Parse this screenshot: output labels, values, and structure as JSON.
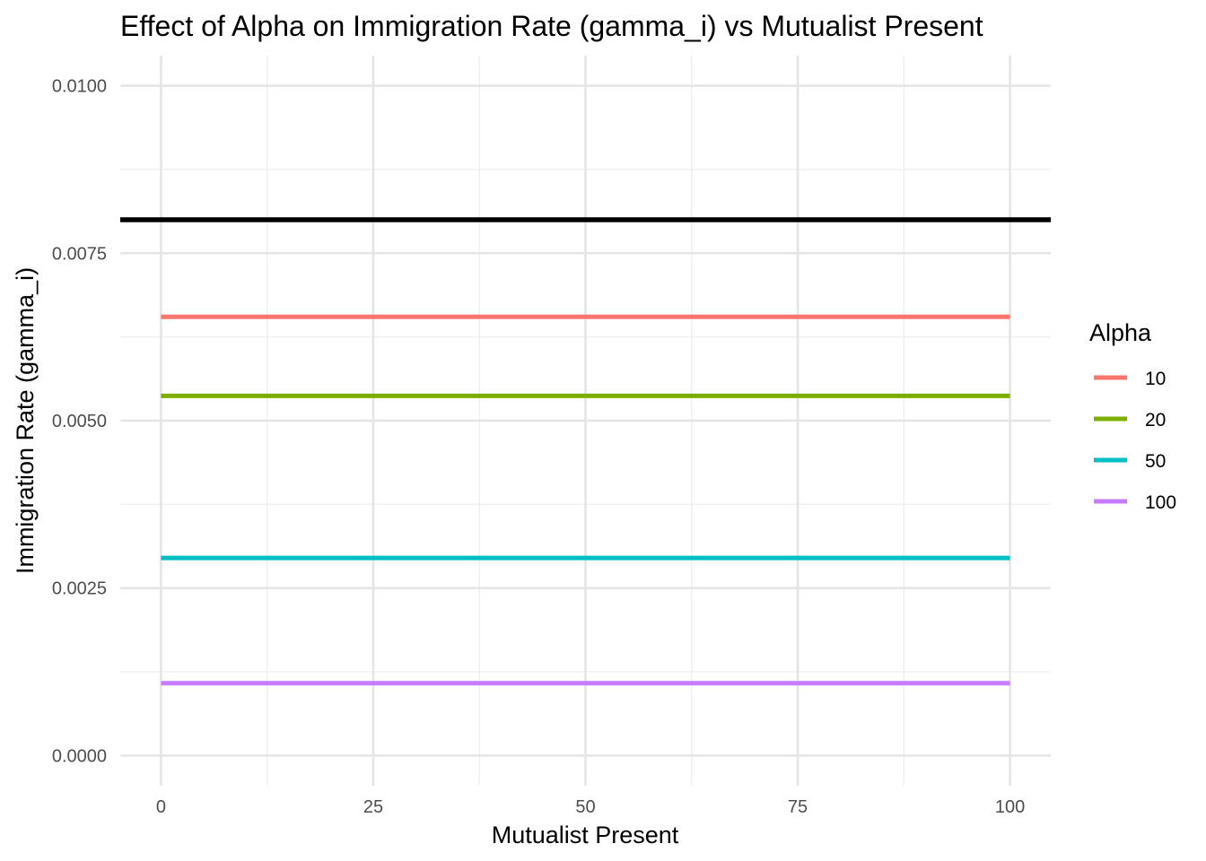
{
  "chart_data": {
    "type": "line",
    "title": "Effect of Alpha on Immigration Rate (gamma_i) vs Mutualist Present",
    "xlabel": "Mutualist Present",
    "ylabel": "Immigration Rate (gamma_i)",
    "xlim": [
      -4.8,
      104.8
    ],
    "ylim": [
      -0.00045,
      0.01045
    ],
    "x_ticks": [
      0,
      25,
      50,
      75,
      100
    ],
    "x_tick_labels": [
      "0",
      "25",
      "50",
      "75",
      "100"
    ],
    "y_ticks": [
      0,
      0.0025,
      0.005,
      0.0075,
      0.01
    ],
    "y_tick_labels": [
      "0.0000",
      "0.0025",
      "0.0050",
      "0.0075",
      "0.0100"
    ],
    "grid": true,
    "legend": {
      "title": "Alpha",
      "position": "right"
    },
    "series": [
      {
        "name": "10",
        "color": "#F8766D",
        "x": [
          0,
          100
        ],
        "y": [
          0.00655,
          0.00655
        ]
      },
      {
        "name": "20",
        "color": "#7CAE00",
        "x": [
          0,
          100
        ],
        "y": [
          0.00537,
          0.00537
        ]
      },
      {
        "name": "50",
        "color": "#00BFC4",
        "x": [
          0,
          100
        ],
        "y": [
          0.00295,
          0.00295
        ]
      },
      {
        "name": "100",
        "color": "#C77CFF",
        "x": [
          0,
          100
        ],
        "y": [
          0.00108,
          0.00108
        ]
      }
    ],
    "reference_line": {
      "orientation": "horizontal",
      "y": 0.008,
      "color": "#000000"
    }
  }
}
